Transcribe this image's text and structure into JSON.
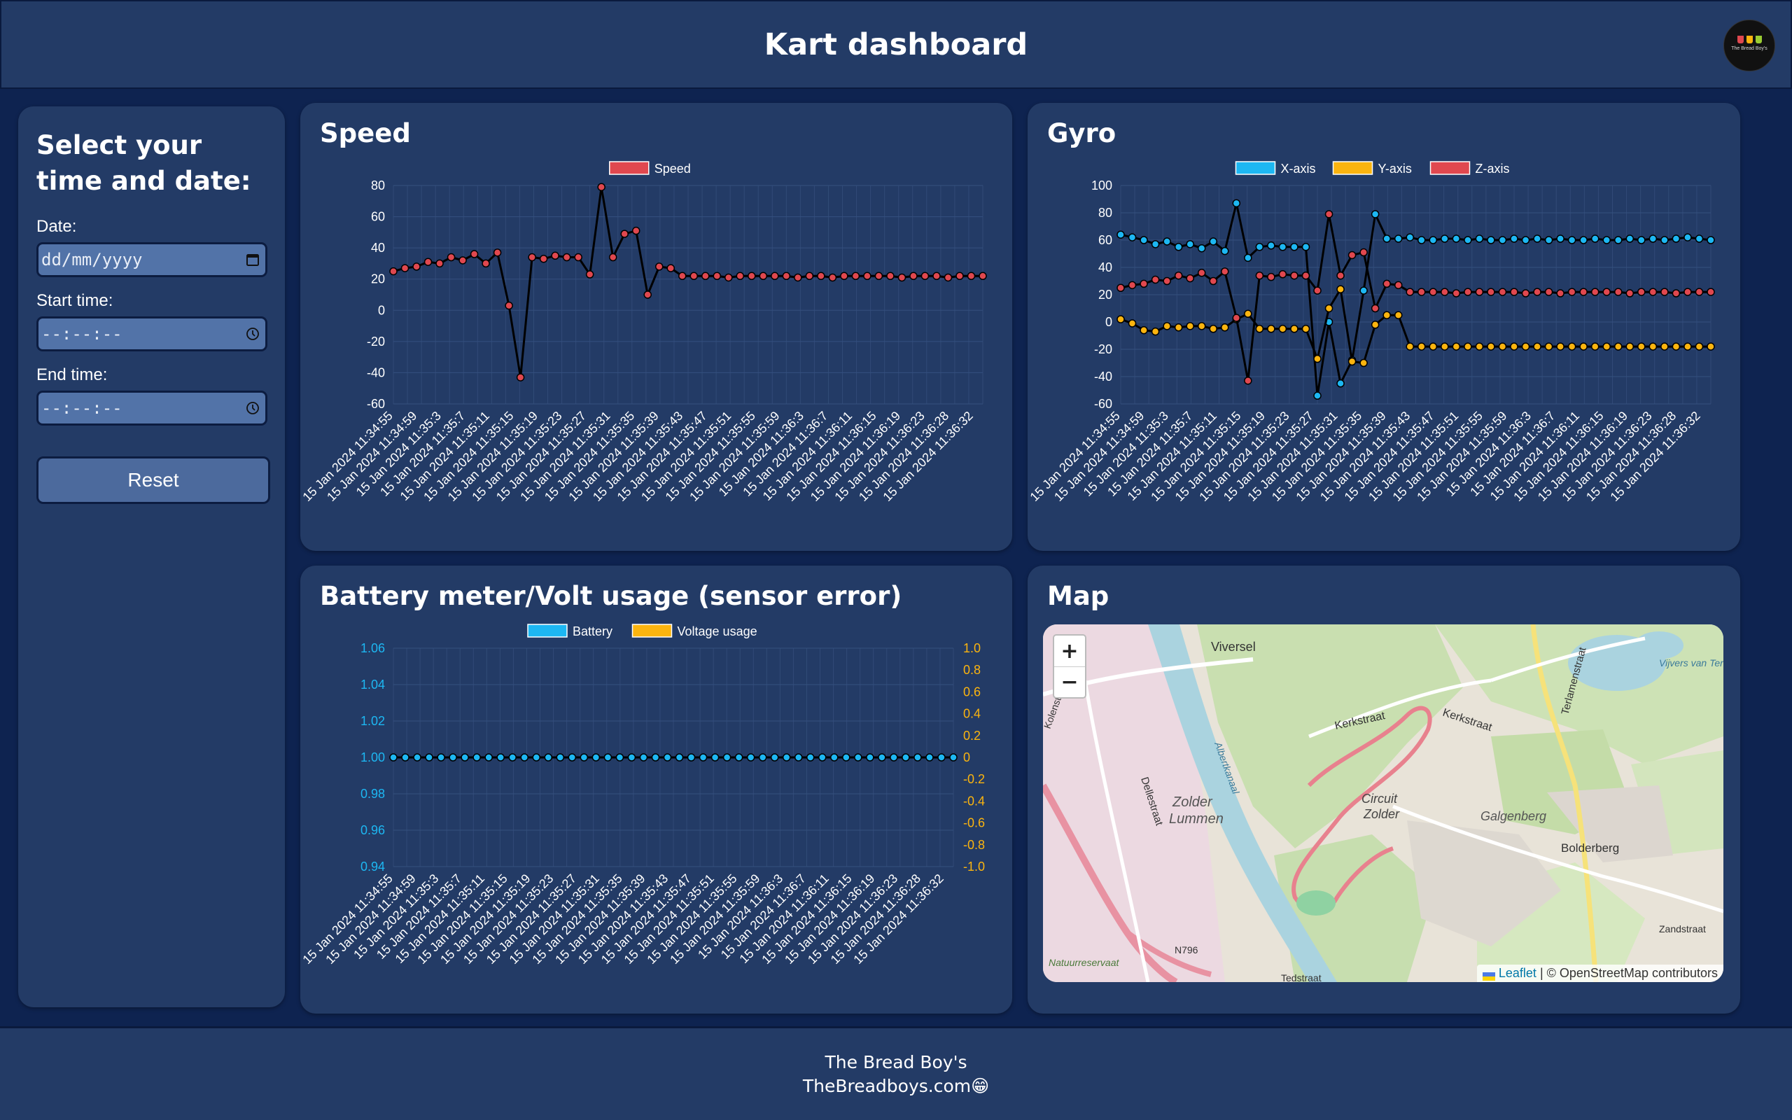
{
  "header": {
    "title": "Kart dashboard",
    "logo_text": "The Bread Boy's"
  },
  "sidebar": {
    "heading": "Select your time and date:",
    "date_label": "Date:",
    "date_value": "dd/mm/yyyy",
    "start_label": "Start time:",
    "start_value": "--:--:--",
    "end_label": "End time:",
    "end_value": "--:--:--",
    "reset_label": "Reset"
  },
  "colors": {
    "speed": "#e0484f",
    "x_axis": "#1db7f2",
    "y_axis": "#fbb40f",
    "z_axis": "#e0484f",
    "battery": "#1db7f2",
    "voltage": "#fbb40f",
    "line": "#000000"
  },
  "x_labels": [
    "15 Jan 2024 11:34:55",
    "15 Jan 2024 11:34:59",
    "15 Jan 2024 11:35:3",
    "15 Jan 2024 11:35:7",
    "15 Jan 2024 11:35:11",
    "15 Jan 2024 11:35:15",
    "15 Jan 2024 11:35:19",
    "15 Jan 2024 11:35:23",
    "15 Jan 2024 11:35:27",
    "15 Jan 2024 11:35:31",
    "15 Jan 2024 11:35:35",
    "15 Jan 2024 11:35:39",
    "15 Jan 2024 11:35:43",
    "15 Jan 2024 11:35:47",
    "15 Jan 2024 11:35:51",
    "15 Jan 2024 11:35:55",
    "15 Jan 2024 11:35:59",
    "15 Jan 2024 11:36:3",
    "15 Jan 2024 11:36:7",
    "15 Jan 2024 11:36:11",
    "15 Jan 2024 11:36:15",
    "15 Jan 2024 11:36:19",
    "15 Jan 2024 11:36:23",
    "15 Jan 2024 11:36:28",
    "15 Jan 2024 11:36:32"
  ],
  "speed": {
    "title": "Speed",
    "chart_data": {
      "type": "line",
      "title": "Speed",
      "ylim": [
        -60,
        80
      ],
      "yticks": [
        80,
        60,
        40,
        20,
        0,
        -20,
        -40,
        -60
      ],
      "legend": "top",
      "series": [
        {
          "name": "Speed",
          "values": [
            25,
            27,
            28,
            31,
            30,
            34,
            32,
            36,
            30,
            37,
            3,
            -43,
            34,
            33,
            35,
            34,
            34,
            23,
            79,
            34,
            49,
            51,
            10,
            28,
            27,
            22,
            22,
            22,
            22,
            21,
            22,
            22,
            22,
            22,
            22,
            21,
            22,
            22,
            21,
            22,
            22,
            22,
            22,
            22,
            21,
            22,
            22,
            22,
            21,
            22,
            22,
            22
          ]
        }
      ]
    }
  },
  "gyro": {
    "title": "Gyro",
    "chart_data": {
      "type": "line",
      "title": "Gyro",
      "ylim": [
        -60,
        100
      ],
      "yticks": [
        100,
        80,
        60,
        40,
        20,
        0,
        -20,
        -40,
        -60
      ],
      "legend": "top",
      "series": [
        {
          "name": "X-axis",
          "values": [
            64,
            62,
            60,
            57,
            59,
            55,
            57,
            54,
            59,
            52,
            87,
            47,
            55,
            56,
            55,
            55,
            55,
            -54,
            0,
            -45,
            -28,
            23,
            79,
            61,
            61,
            62,
            60,
            60,
            61,
            61,
            60,
            61,
            60,
            60,
            61,
            60,
            61,
            60,
            61,
            60,
            60,
            61,
            60,
            60,
            61,
            60,
            61,
            60,
            61,
            62,
            61,
            60
          ]
        },
        {
          "name": "Y-axis",
          "values": [
            2,
            -1,
            -6,
            -7,
            -3,
            -4,
            -3,
            -3,
            -5,
            -4,
            2,
            6,
            -5,
            -5,
            -5,
            -5,
            -5,
            -27,
            10,
            24,
            -29,
            -30,
            -2,
            5,
            5,
            -18,
            -18,
            -18,
            -18,
            -18,
            -18,
            -18,
            -18,
            -18,
            -18,
            -18,
            -18,
            -18,
            -18,
            -18,
            -18,
            -18,
            -18,
            -18,
            -18,
            -18,
            -18,
            -18,
            -18,
            -18,
            -18,
            -18
          ]
        },
        {
          "name": "Z-axis",
          "values": [
            25,
            27,
            28,
            31,
            30,
            34,
            32,
            36,
            30,
            37,
            3,
            -43,
            34,
            33,
            35,
            34,
            34,
            23,
            79,
            34,
            49,
            51,
            10,
            28,
            27,
            22,
            22,
            22,
            22,
            21,
            22,
            22,
            22,
            22,
            22,
            21,
            22,
            22,
            21,
            22,
            22,
            22,
            22,
            22,
            21,
            22,
            22,
            22,
            21,
            22,
            22,
            22
          ]
        }
      ]
    }
  },
  "battery": {
    "title": "Battery meter/Volt usage (sensor error)",
    "chart_data": {
      "type": "line",
      "title": "Battery meter/Volt usage (sensor error)",
      "ylim_left": [
        0.94,
        1.06
      ],
      "yticks_left": [
        "1.06",
        "1.04",
        "1.02",
        "1.00",
        "0.98",
        "0.96",
        "0.94"
      ],
      "ylim_right": [
        -1.0,
        1.0
      ],
      "yticks_right": [
        "1.0",
        "0.8",
        "0.6",
        "0.4",
        "0.2",
        "0",
        "-0.2",
        "-0.4",
        "-0.6",
        "-0.8",
        "-1.0"
      ],
      "legend": "top",
      "series": [
        {
          "name": "Battery",
          "axis": "left",
          "value_constant": 1.0,
          "count": 48
        },
        {
          "name": "Voltage usage",
          "axis": "right",
          "value_constant": 0,
          "count": 48
        }
      ]
    }
  },
  "map": {
    "title": "Map",
    "zoom_in": "+",
    "zoom_out": "−",
    "attrib_leaflet": "Leaflet",
    "attrib_rest": " | © OpenStreetMap contributors",
    "labels": {
      "viversel": "Viversel",
      "kerkstraat1": "Kerkstraat",
      "kerkstraat2": "Kerkstraat",
      "terlamenstraat": "Terlamenstraat",
      "vijvers": "Vijvers van Terlamen",
      "zolder_lummen1": "Zolder",
      "zolder_lummen2": "Lummen",
      "circuit1": "Circuit",
      "circuit2": "Zolder",
      "galgenberg": "Galgenberg",
      "bolderberg": "Bolderberg",
      "dellestraat": "Dellestraat",
      "albertkanaal": "Albertkanaal",
      "n796": "N796",
      "zandstraat": "Zandstraat",
      "natuurreservaat": "Natuurreservaat",
      "tedstraat": "Tedstraat",
      "kolenstraat": "Kolenstraat"
    }
  },
  "footer": {
    "line1": "The Bread Boy's",
    "line2": "TheBreadboys.com😁"
  }
}
